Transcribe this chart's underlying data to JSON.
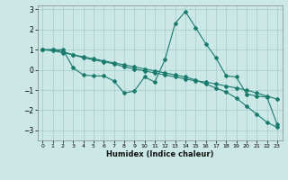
{
  "xlabel": "Humidex (Indice chaleur)",
  "ylabel": "",
  "background_color": "#cce8e6",
  "grid_color": "#aad0ce",
  "line_color": "#1a7a6e",
  "xlim": [
    -0.5,
    23.5
  ],
  "ylim": [
    -3.5,
    3.2
  ],
  "yticks": [
    -3,
    -2,
    -1,
    0,
    1,
    2,
    3
  ],
  "xticks": [
    0,
    1,
    2,
    3,
    4,
    5,
    6,
    7,
    8,
    9,
    10,
    11,
    12,
    13,
    14,
    15,
    16,
    17,
    18,
    19,
    20,
    21,
    22,
    23
  ],
  "series1_x": [
    0,
    1,
    2,
    3,
    4,
    5,
    6,
    7,
    8,
    9,
    10,
    11,
    12,
    13,
    14,
    15,
    16,
    17,
    18,
    19,
    20,
    21,
    22,
    23
  ],
  "series1_y": [
    1.0,
    1.0,
    1.0,
    0.1,
    -0.25,
    -0.3,
    -0.3,
    -0.55,
    -1.15,
    -1.05,
    -0.35,
    -0.6,
    0.5,
    2.3,
    2.9,
    2.1,
    1.3,
    0.6,
    -0.3,
    -0.35,
    -1.2,
    -1.3,
    -1.35,
    -2.7
  ],
  "series2_x": [
    0,
    1,
    2,
    3,
    4,
    5,
    6,
    7,
    8,
    9,
    10,
    11,
    12,
    13,
    14,
    15,
    16,
    17,
    18,
    19,
    20,
    21,
    22,
    23
  ],
  "series2_y": [
    1.0,
    1.0,
    0.9,
    0.75,
    0.6,
    0.5,
    0.4,
    0.3,
    0.15,
    0.05,
    -0.05,
    -0.15,
    -0.25,
    -0.35,
    -0.45,
    -0.55,
    -0.6,
    -0.7,
    -0.8,
    -0.9,
    -1.0,
    -1.15,
    -1.3,
    -1.45
  ],
  "series3_x": [
    0,
    1,
    2,
    3,
    4,
    5,
    6,
    7,
    8,
    9,
    10,
    11,
    12,
    13,
    14,
    15,
    16,
    17,
    18,
    19,
    20,
    21,
    22,
    23
  ],
  "series3_y": [
    1.0,
    0.95,
    0.85,
    0.75,
    0.65,
    0.55,
    0.45,
    0.35,
    0.25,
    0.15,
    0.05,
    -0.05,
    -0.15,
    -0.25,
    -0.35,
    -0.5,
    -0.7,
    -0.9,
    -1.1,
    -1.4,
    -1.8,
    -2.2,
    -2.6,
    -2.85
  ]
}
